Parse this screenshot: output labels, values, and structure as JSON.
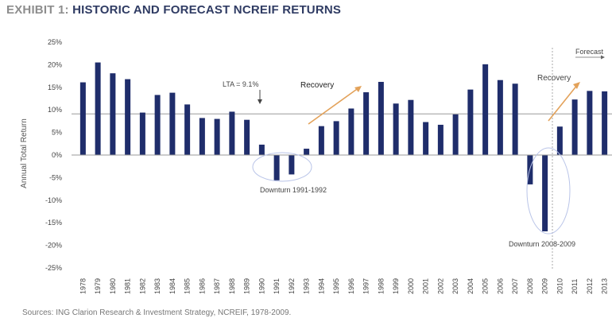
{
  "title_prefix": "EXHIBIT 1:",
  "title_main": "HISTORIC AND FORECAST NCREIF RETURNS",
  "source": "Sources: ING Clarion Research & Investment Strategy, NCREIF, 1978-2009.",
  "chart_data": {
    "type": "bar",
    "ylabel": "Annual Total Return",
    "ylim": [
      -25,
      25
    ],
    "yticks": [
      "-25%",
      "-20%",
      "-15%",
      "-10%",
      "-5%",
      "0%",
      "5%",
      "10%",
      "15%",
      "20%",
      "25%"
    ],
    "categories": [
      "1978",
      "1979",
      "1980",
      "1981",
      "1982",
      "1983",
      "1984",
      "1985",
      "1986",
      "1987",
      "1988",
      "1989",
      "1990",
      "1991",
      "1992",
      "1993",
      "1994",
      "1995",
      "1996",
      "1997",
      "1998",
      "1999",
      "2000",
      "2001",
      "2002",
      "2003",
      "2004",
      "2005",
      "2006",
      "2007",
      "2008",
      "2009",
      "2010",
      "2011",
      "2012",
      "2013"
    ],
    "values": [
      16.1,
      20.5,
      18.1,
      16.8,
      9.4,
      13.3,
      13.8,
      11.2,
      8.2,
      8.0,
      9.6,
      7.8,
      2.3,
      -5.6,
      -4.3,
      1.4,
      6.4,
      7.5,
      10.3,
      13.9,
      16.2,
      11.4,
      12.2,
      7.3,
      6.7,
      9.0,
      14.5,
      20.1,
      16.6,
      15.8,
      -6.5,
      -16.9,
      6.3,
      12.3,
      14.2,
      14.1
    ],
    "lta_value": 9.1,
    "bar_color": "#1f2d6b",
    "annotations": {
      "lta": "LTA = 9.1%",
      "recovery_1": "Recovery",
      "recovery_2": "Recovery",
      "downturn_1": "Downturn 1991-1992",
      "downturn_2": "Downturn 2008-2009",
      "forecast": "Forecast"
    }
  }
}
